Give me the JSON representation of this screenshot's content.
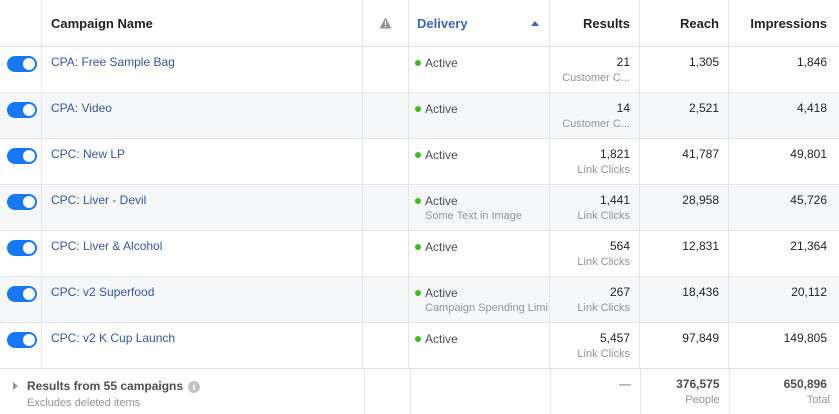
{
  "header": {
    "name": "Campaign Name",
    "delivery": "Delivery",
    "results": "Results",
    "reach": "Reach",
    "impressions": "Impressions"
  },
  "rows": [
    {
      "on": true,
      "name": "CPA: Free Sample Bag",
      "status": "Active",
      "status_sub": "",
      "results": "21",
      "results_sub": "Customer C...",
      "reach": "1,305",
      "impressions": "1,846"
    },
    {
      "on": true,
      "name": "CPA: Video",
      "status": "Active",
      "status_sub": "",
      "results": "14",
      "results_sub": "Customer C...",
      "reach": "2,521",
      "impressions": "4,418"
    },
    {
      "on": true,
      "name": "CPC: New LP",
      "status": "Active",
      "status_sub": "",
      "results": "1,821",
      "results_sub": "Link Clicks",
      "reach": "41,787",
      "impressions": "49,801"
    },
    {
      "on": true,
      "name": "CPC: Liver - Devil",
      "status": "Active",
      "status_sub": "Some Text in Image",
      "results": "1,441",
      "results_sub": "Link Clicks",
      "reach": "28,958",
      "impressions": "45,726"
    },
    {
      "on": true,
      "name": "CPC: Liver & Alcohol",
      "status": "Active",
      "status_sub": "",
      "results": "564",
      "results_sub": "Link Clicks",
      "reach": "12,831",
      "impressions": "21,364"
    },
    {
      "on": true,
      "name": "CPC: v2 Superfood",
      "status": "Active",
      "status_sub": "Campaign Spending Limi",
      "results": "267",
      "results_sub": "Link Clicks",
      "reach": "18,436",
      "impressions": "20,112"
    },
    {
      "on": true,
      "name": "CPC: v2 K Cup Launch",
      "status": "Active",
      "status_sub": "",
      "results": "5,457",
      "results_sub": "Link Clicks",
      "reach": "97,849",
      "impressions": "149,805"
    }
  ],
  "summary": {
    "title": "Results from 55 campaigns",
    "sub": "Excludes deleted items",
    "results": "—",
    "reach": "376,575",
    "reach_sub": "People",
    "impressions": "650,896",
    "impressions_sub": "Total"
  },
  "colors": {
    "toggle_on": "#1877f2",
    "active_dot": "#42b72a",
    "link": "#365899",
    "sort_header": "#4267b2"
  },
  "icons": {
    "warning": "warning-icon",
    "sort": "sort-ascending-icon",
    "info": "info-icon",
    "expand": "expand-caret-icon"
  }
}
